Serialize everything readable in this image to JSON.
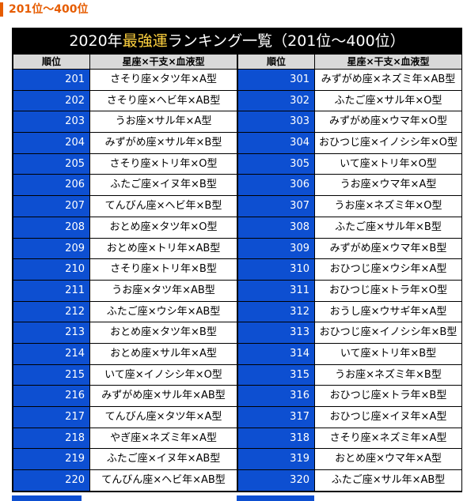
{
  "heading": "201位～400位",
  "table": {
    "title_prefix": "2020年",
    "title_highlight": "最強運",
    "title_suffix": "ランキング一覧（201位～400位）",
    "col_rank": "順位",
    "col_combo": "星座×干支×血液型",
    "left": [
      {
        "rank": "201",
        "combo": "さそり座×タツ年×A型"
      },
      {
        "rank": "202",
        "combo": "さそり座×ヘビ年×AB型"
      },
      {
        "rank": "203",
        "combo": "うお座×サル年×A型"
      },
      {
        "rank": "204",
        "combo": "みずがめ座×サル年×B型"
      },
      {
        "rank": "205",
        "combo": "さそり座×トリ年×O型"
      },
      {
        "rank": "206",
        "combo": "ふたご座×イヌ年×B型"
      },
      {
        "rank": "207",
        "combo": "てんびん座×ヘビ年×B型"
      },
      {
        "rank": "208",
        "combo": "おとめ座×タツ年×O型"
      },
      {
        "rank": "209",
        "combo": "おとめ座×トリ年×AB型"
      },
      {
        "rank": "210",
        "combo": "さそり座×トリ年×B型"
      },
      {
        "rank": "211",
        "combo": "うお座×タツ年×AB型"
      },
      {
        "rank": "212",
        "combo": "ふたご座×ウシ年×AB型"
      },
      {
        "rank": "213",
        "combo": "おとめ座×タツ年×B型"
      },
      {
        "rank": "214",
        "combo": "おとめ座×サル年×A型"
      },
      {
        "rank": "215",
        "combo": "いて座×イノシシ年×O型"
      },
      {
        "rank": "216",
        "combo": "みずがめ座×サル年×AB型"
      },
      {
        "rank": "217",
        "combo": "てんびん座×タツ年×A型"
      },
      {
        "rank": "218",
        "combo": "やぎ座×ネズミ年×A型"
      },
      {
        "rank": "219",
        "combo": "ふたご座×イヌ年×AB型"
      },
      {
        "rank": "220",
        "combo": "てんびん座×ヘビ年×AB型"
      }
    ],
    "right": [
      {
        "rank": "301",
        "combo": "みずがめ座×ネズミ年×AB型"
      },
      {
        "rank": "302",
        "combo": "ふたご座×サル年×O型"
      },
      {
        "rank": "303",
        "combo": "みずがめ座×ウマ年×O型"
      },
      {
        "rank": "304",
        "combo": "おひつじ座×イノシシ年×O型"
      },
      {
        "rank": "305",
        "combo": "いて座×トリ年×O型"
      },
      {
        "rank": "306",
        "combo": "うお座×ウマ年×A型"
      },
      {
        "rank": "307",
        "combo": "うお座×ネズミ年×O型"
      },
      {
        "rank": "308",
        "combo": "ふたご座×サル年×B型"
      },
      {
        "rank": "309",
        "combo": "みずがめ座×ウマ年×B型"
      },
      {
        "rank": "310",
        "combo": "おひつじ座×ウシ年×A型"
      },
      {
        "rank": "311",
        "combo": "おひつじ座×トラ年×O型"
      },
      {
        "rank": "312",
        "combo": "おうし座×ウサギ年×A型"
      },
      {
        "rank": "313",
        "combo": "おひつじ座×イノシシ年×B型"
      },
      {
        "rank": "314",
        "combo": "いて座×トリ年×B型"
      },
      {
        "rank": "315",
        "combo": "うお座×ネズミ年×B型"
      },
      {
        "rank": "316",
        "combo": "おひつじ座×トラ年×B型"
      },
      {
        "rank": "317",
        "combo": "おひつじ座×イヌ年×A型"
      },
      {
        "rank": "318",
        "combo": "さそり座×ネズミ年×A型"
      },
      {
        "rank": "319",
        "combo": "おとめ座×ウマ年×A型"
      },
      {
        "rank": "320",
        "combo": "ふたご座×サル年×AB型"
      }
    ]
  },
  "colors": {
    "accent": "#e65c00",
    "rank_cell": "#0d4fd1",
    "title_bg": "#000000",
    "title_highlight": "#ffd23f",
    "header_bg": "#d9d9d9"
  }
}
